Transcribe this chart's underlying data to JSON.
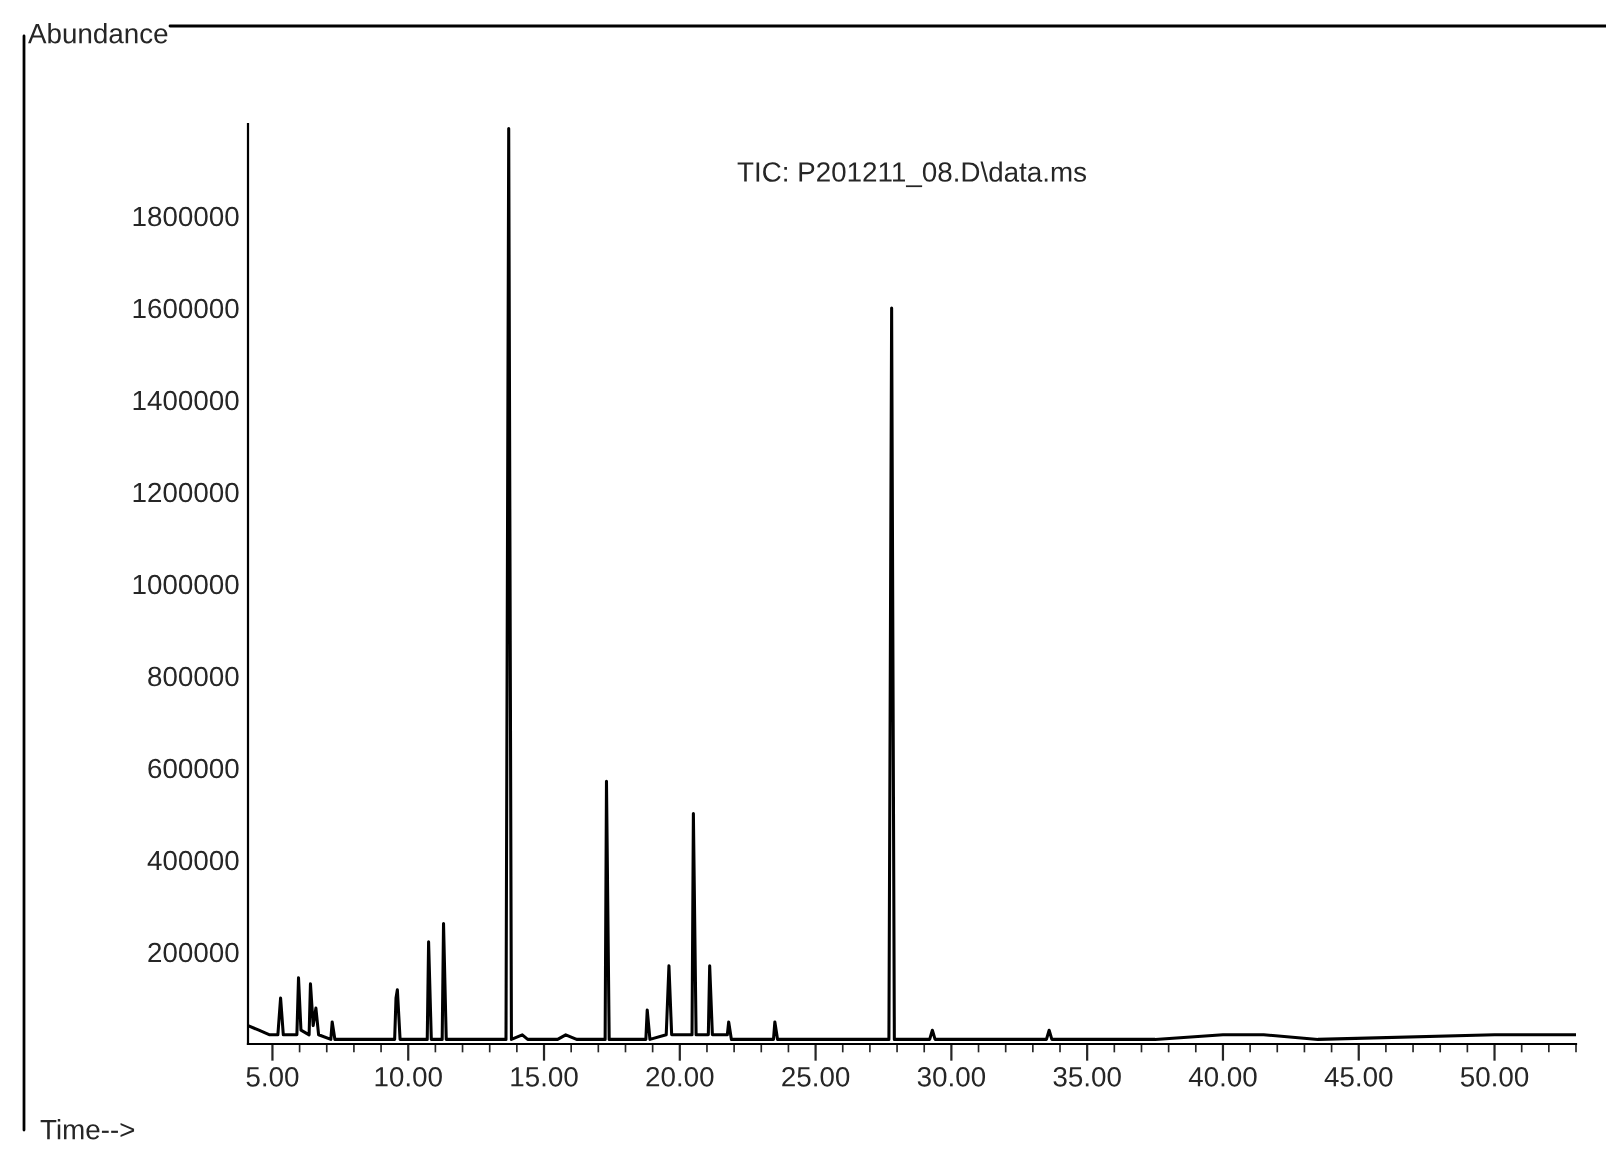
{
  "chart_data": {
    "type": "line",
    "title": "TIC: P201211_08.D\\data.ms",
    "xlabel": "Time-->",
    "ylabel": "Abundance",
    "x": [
      4.1,
      4.5,
      4.9,
      5.2,
      5.3,
      5.4,
      5.9,
      5.96,
      6.05,
      6.35,
      6.4,
      6.5,
      6.6,
      6.7,
      7.15,
      7.2,
      7.3,
      9.5,
      9.55,
      9.6,
      9.7,
      10.7,
      10.75,
      10.85,
      11.25,
      11.3,
      11.4,
      13.6,
      13.7,
      13.8,
      14.2,
      14.4,
      15.5,
      15.8,
      16.2,
      17.25,
      17.3,
      17.4,
      18.75,
      18.8,
      18.9,
      19.5,
      19.6,
      19.7,
      20.45,
      20.5,
      20.6,
      21.05,
      21.1,
      21.2,
      21.75,
      21.8,
      21.9,
      23.45,
      23.5,
      23.6,
      27.7,
      27.8,
      27.9,
      29.2,
      29.3,
      29.4,
      33.5,
      33.6,
      33.7,
      37.5,
      40.0,
      41.5,
      43.5,
      50.0,
      53.0
    ],
    "series": [
      {
        "color": "#000000",
        "values": [
          40000,
          30000,
          20000,
          20000,
          100000,
          20000,
          20000,
          144000,
          30000,
          20000,
          131000,
          40000,
          78000,
          20000,
          10000,
          48000,
          10000,
          10000,
          100000,
          118000,
          10000,
          10000,
          222000,
          10000,
          10000,
          262000,
          10000,
          10000,
          1990000,
          10000,
          20000,
          10000,
          10000,
          20000,
          10000,
          10000,
          571000,
          10000,
          10000,
          74000,
          10000,
          20000,
          170000,
          20000,
          20000,
          501000,
          20000,
          20000,
          170000,
          20000,
          20000,
          48000,
          10000,
          10000,
          48000,
          10000,
          10000,
          1600000,
          10000,
          10000,
          30000,
          10000,
          10000,
          30000,
          10000,
          10000,
          20000,
          20000,
          10000,
          20000,
          20000
        ]
      }
    ],
    "xlim": [
      4.1,
      53.0
    ],
    "ylim": [
      0,
      2000000
    ],
    "xticks": [
      {
        "value": 5,
        "label": "5.00"
      },
      {
        "value": 10,
        "label": "10.00"
      },
      {
        "value": 15,
        "label": "15.00"
      },
      {
        "value": 20,
        "label": "20.00"
      },
      {
        "value": 25,
        "label": "25.00"
      },
      {
        "value": 30,
        "label": "30.00"
      },
      {
        "value": 35,
        "label": "35.00"
      },
      {
        "value": 40,
        "label": "40.00"
      },
      {
        "value": 45,
        "label": "45.00"
      },
      {
        "value": 50,
        "label": "50.00"
      }
    ],
    "yticks": [
      200000,
      400000,
      600000,
      800000,
      1000000,
      1200000,
      1400000,
      1600000,
      1800000
    ],
    "grid": false,
    "legend": false,
    "marker": "none",
    "line_style": "solid"
  }
}
